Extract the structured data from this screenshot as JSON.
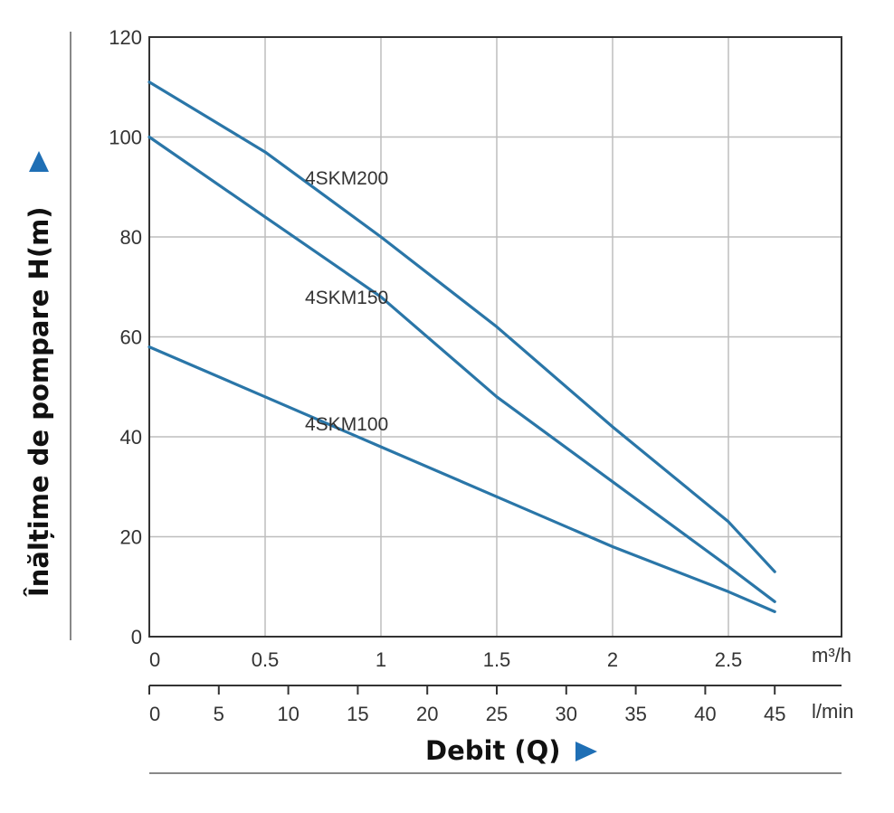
{
  "chart_data": {
    "type": "line",
    "title": "",
    "xlabel": "Debit (Q)",
    "ylabel": "Înălțime de pompare H(m)",
    "x_unit": "m³/h",
    "x2_unit": "l/min",
    "xlim": [
      0,
      3
    ],
    "ylim": [
      0,
      120
    ],
    "x_ticks": [
      "0",
      "0.5",
      "1",
      "1.5",
      "2",
      "2.5"
    ],
    "x2_ticks": [
      "0",
      "5",
      "10",
      "15",
      "20",
      "25",
      "30",
      "35",
      "40",
      "45"
    ],
    "y_ticks": [
      "0",
      "20",
      "40",
      "60",
      "80",
      "100",
      "120"
    ],
    "grid": true,
    "line_color": "#2a76a8",
    "arrow_color": "#1f6fb5",
    "series": [
      {
        "name": "4SKM200",
        "x": [
          0,
          0.5,
          1,
          1.5,
          2,
          2.5,
          2.7
        ],
        "y": [
          111,
          97,
          80,
          62,
          42,
          23,
          13
        ]
      },
      {
        "name": "4SKM150",
        "x": [
          0,
          0.5,
          1,
          1.5,
          2,
          2.5,
          2.7
        ],
        "y": [
          100,
          84,
          68,
          48,
          31,
          14,
          7
        ]
      },
      {
        "name": "4SKM100",
        "x": [
          0,
          0.5,
          1,
          1.5,
          2,
          2.5,
          2.7
        ],
        "y": [
          58,
          48,
          38,
          28,
          18,
          9,
          5
        ]
      }
    ]
  }
}
